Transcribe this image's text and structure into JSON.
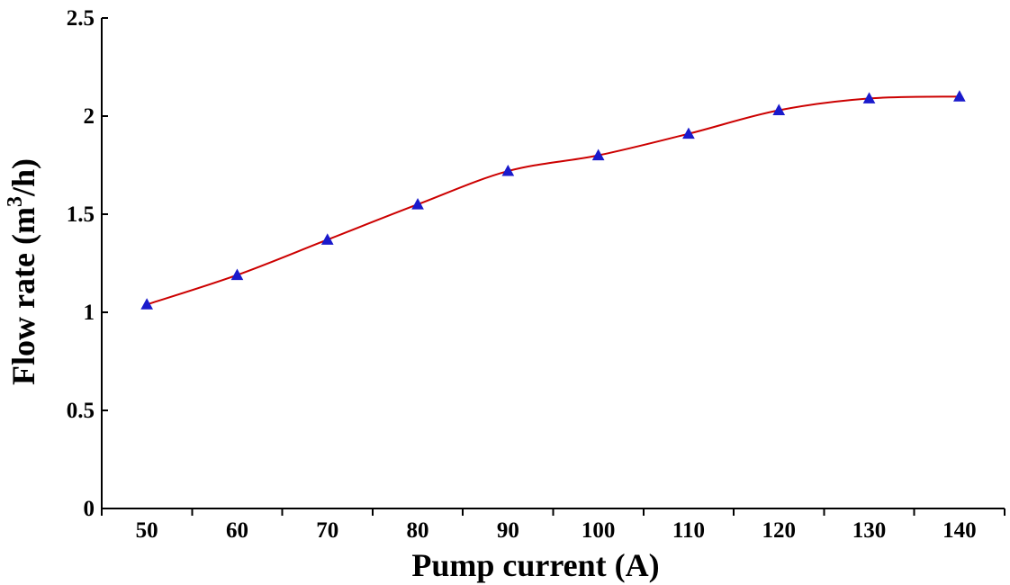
{
  "chart_data": {
    "type": "line",
    "title": "",
    "xlabel": "Pump current (A)",
    "ylabel_main": "Flow rate (m",
    "ylabel_sup": "3",
    "ylabel_tail": "/h)",
    "xlim": [
      45,
      145
    ],
    "ylim": [
      0,
      2.5
    ],
    "x_ticks": [
      50,
      60,
      70,
      80,
      90,
      100,
      110,
      120,
      130,
      140
    ],
    "x_tick_labels": [
      "50",
      "60",
      "70",
      "80",
      "90",
      "100",
      "110",
      "120",
      "130",
      "140"
    ],
    "x_tick_marks": [
      45,
      55,
      65,
      75,
      85,
      95,
      105,
      115,
      125,
      135,
      145
    ],
    "y_ticks": [
      0,
      0.5,
      1,
      1.5,
      2,
      2.5
    ],
    "y_tick_labels": [
      "0",
      "0.5",
      "1",
      "1.5",
      "2",
      "2.5"
    ],
    "grid": false,
    "legend": "none",
    "series": [
      {
        "line_color": "#cc0000",
        "marker": "triangle",
        "marker_color": "#1a1acc",
        "x": [
          50,
          60,
          70,
          80,
          90,
          100,
          110,
          120,
          130,
          140
        ],
        "y": [
          1.04,
          1.19,
          1.37,
          1.55,
          1.72,
          1.8,
          1.91,
          2.03,
          2.09,
          2.1
        ]
      }
    ]
  }
}
